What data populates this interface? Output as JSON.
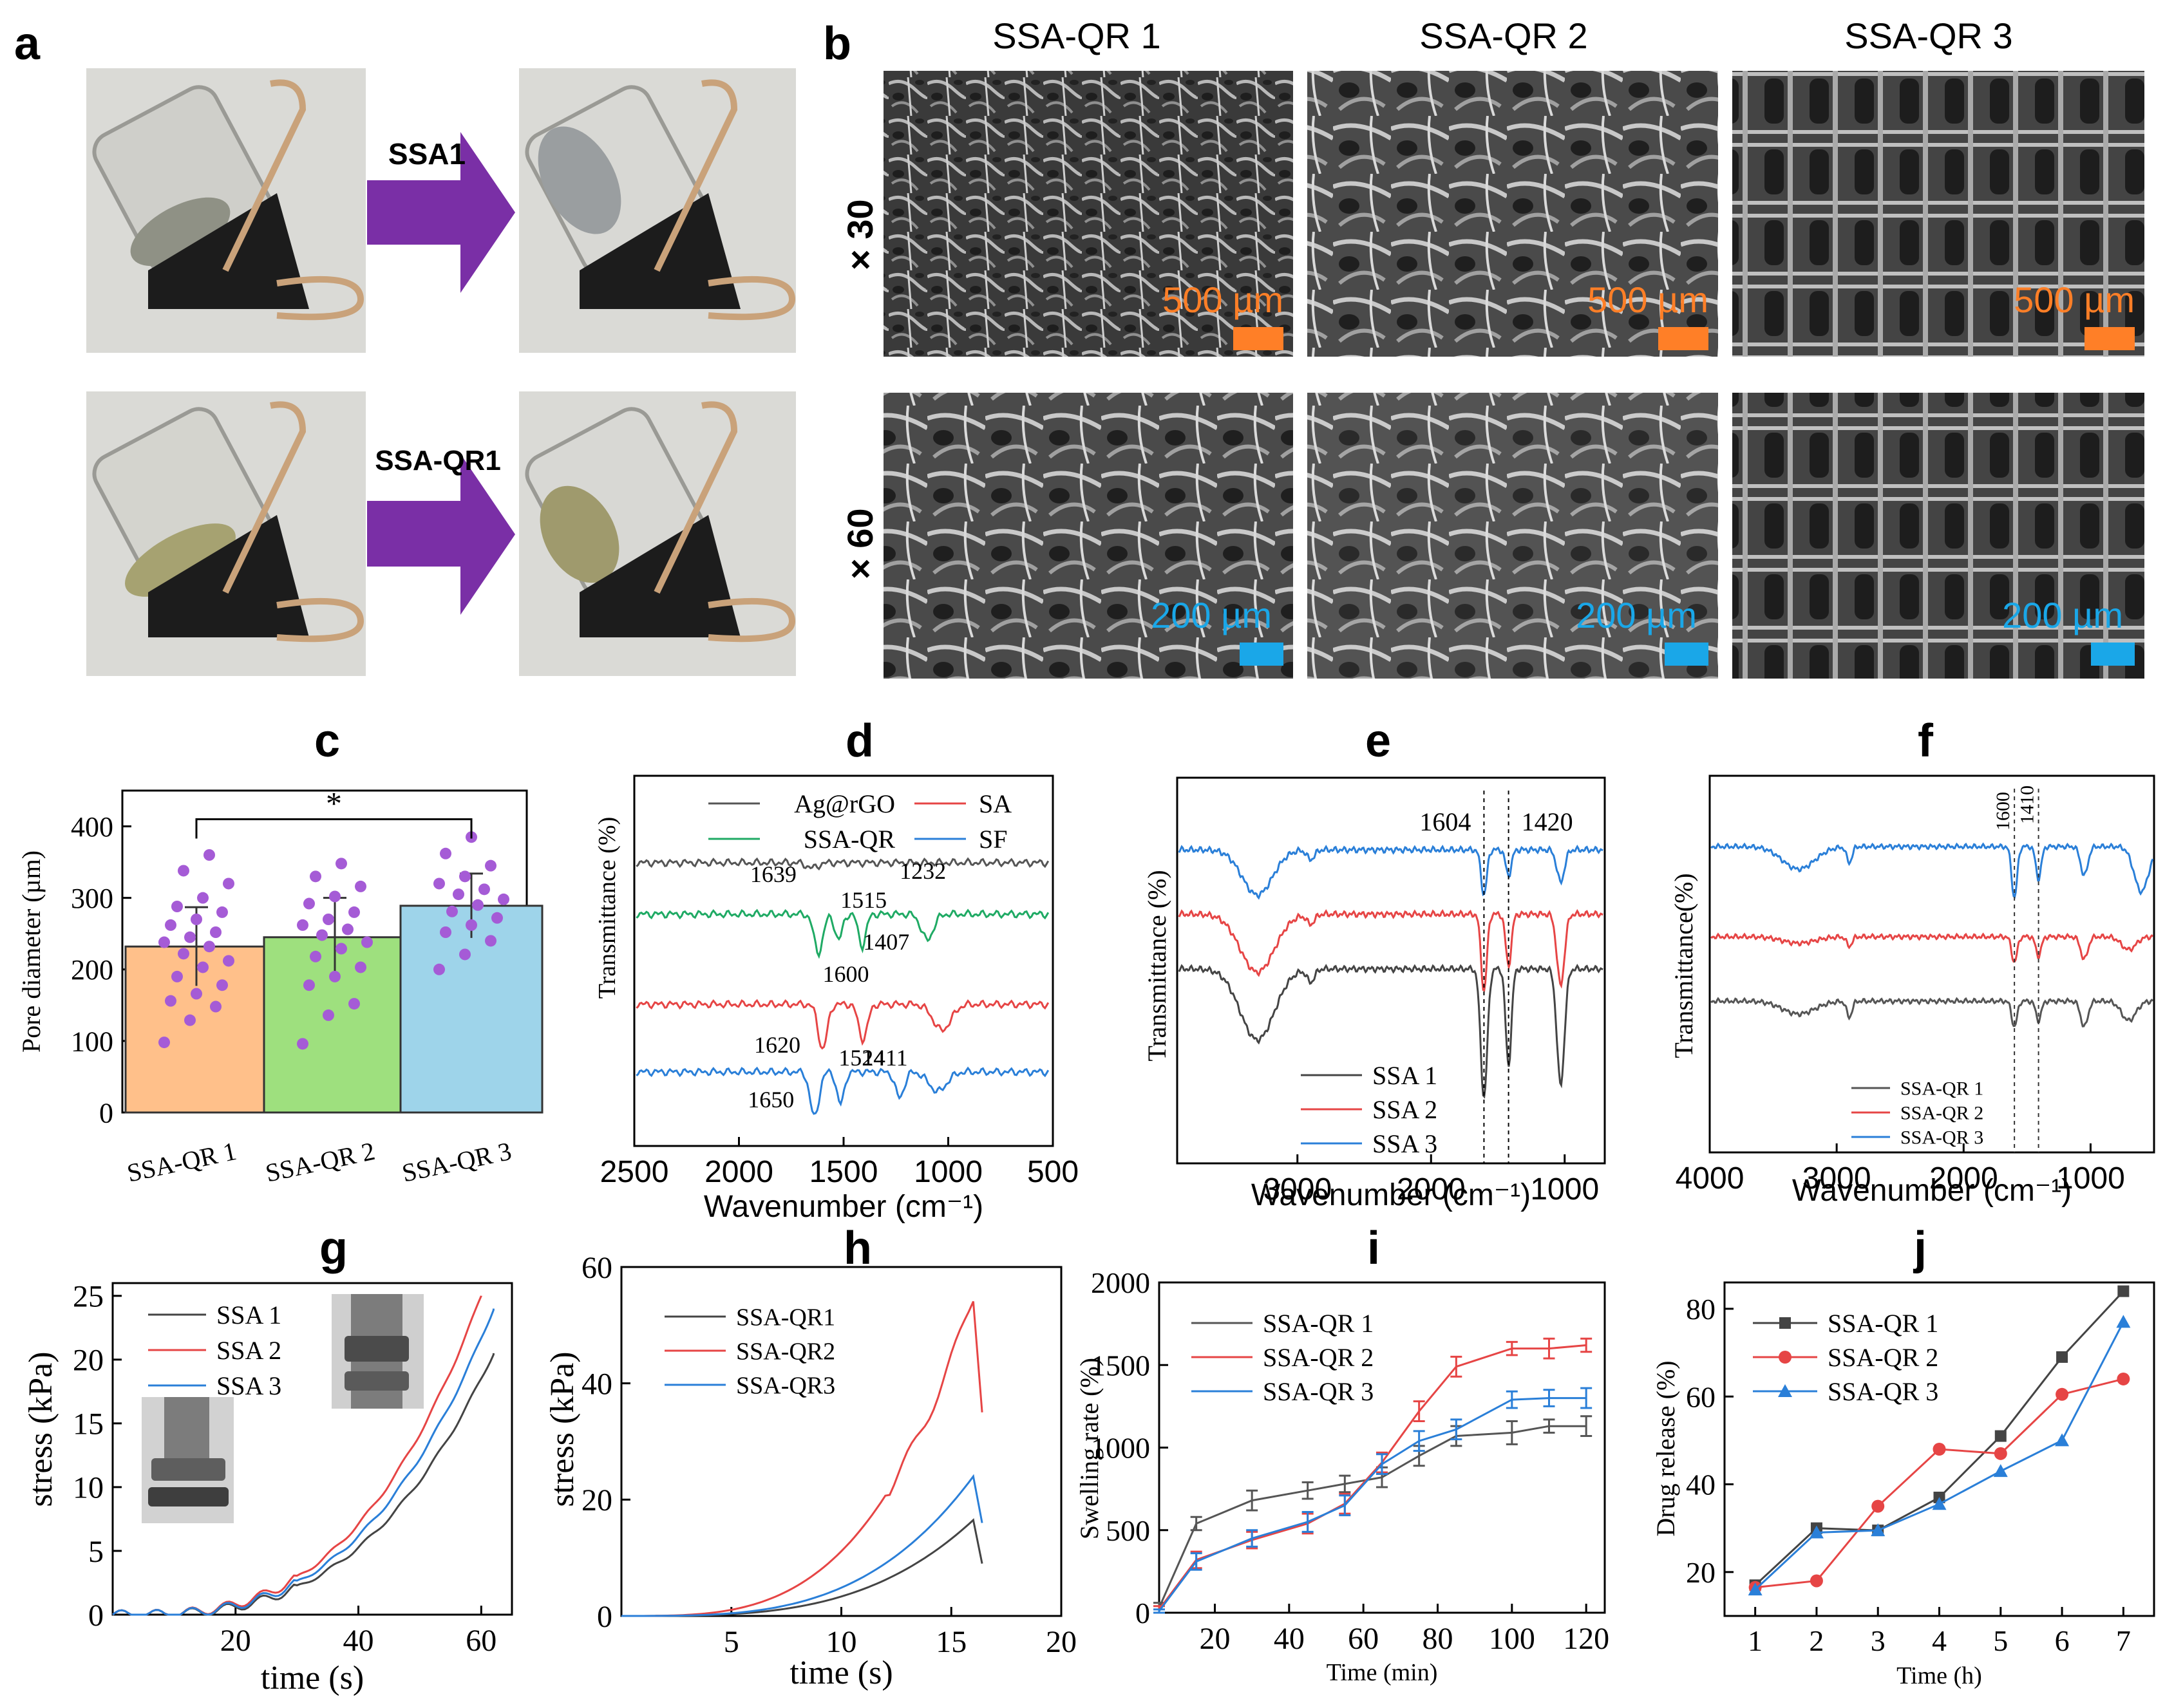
{
  "panels": {
    "a": {
      "label": "a",
      "arrows": [
        "SSA1",
        "SSA-QR1"
      ],
      "colors": {
        "arrow": "#7a2fa6",
        "background": "#d9d9d6",
        "clip": "#1c1c1c",
        "glass": "#c8c8c4"
      }
    },
    "b": {
      "label": "b",
      "columns": [
        "SSA-QR 1",
        "SSA-QR 2",
        "SSA-QR 3"
      ],
      "rows": [
        "× 30",
        "× 60"
      ],
      "scalebars": [
        "500 µm",
        "200 µm"
      ],
      "colors": {
        "scale_top": "#ff7f27",
        "scale_bottom": "#1aa7e8"
      }
    },
    "c": "c",
    "d": "d",
    "e": "e",
    "f": "f",
    "g": "g",
    "h": "h",
    "i": "i",
    "j": "j"
  },
  "chart_data": [
    {
      "id": "c",
      "type": "bar",
      "categories": [
        "SSA-QR 1",
        "SSA-QR 2",
        "SSA-QR 3"
      ],
      "values": [
        232,
        245,
        289
      ],
      "errors": [
        55,
        55,
        45
      ],
      "colors": [
        "#ffc08a",
        "#9ee07e",
        "#9ed4ea"
      ],
      "points": [
        [
          98,
          129,
          148,
          156,
          166,
          178,
          190,
          203,
          212,
          222,
          232,
          238,
          245,
          252,
          262,
          270,
          280,
          288,
          300,
          320,
          338,
          360
        ],
        [
          96,
          136,
          152,
          178,
          190,
          203,
          218,
          229,
          238,
          248,
          256,
          262,
          270,
          280,
          292,
          302,
          316,
          330,
          348
        ],
        [
          200,
          221,
          240,
          252,
          262,
          272,
          281,
          290,
          298,
          305,
          312,
          320,
          330,
          345,
          362,
          385
        ]
      ],
      "ylabel": "Pore diameter (µm)",
      "ylim": [
        0,
        450
      ],
      "yticks": [
        "0",
        "100",
        "200",
        "300",
        "400"
      ],
      "significance": "*"
    },
    {
      "id": "d",
      "type": "line",
      "xlabel": "Wavenumber (cm⁻¹)",
      "ylabel": "Transmittance (%)",
      "xlim": [
        2500,
        500
      ],
      "xticks": [
        "2500",
        "2000",
        "1500",
        "1000",
        "500"
      ],
      "series": [
        {
          "name": "Ag@rGO",
          "color": "#555555",
          "offset": 0
        },
        {
          "name": "SA",
          "color": "#e64545",
          "offset": 2
        },
        {
          "name": "SSA-QR",
          "color": "#1faa64",
          "offset": 1
        },
        {
          "name": "SF",
          "color": "#2a7fd8",
          "offset": 3
        }
      ],
      "annotations": [
        "1639",
        "1515",
        "1232",
        "1600",
        "1407",
        "1620",
        "1524",
        "1411",
        "1650"
      ]
    },
    {
      "id": "e",
      "type": "line",
      "xlabel": "Wavenumber (cm⁻¹)",
      "ylabel": "Transmittance (%)",
      "xlim": [
        3900,
        700
      ],
      "xticks": [
        "3000",
        "2000",
        "1000"
      ],
      "series": [
        {
          "name": "SSA 1",
          "color": "#444444"
        },
        {
          "name": "SSA 2",
          "color": "#e64545"
        },
        {
          "name": "SSA 3",
          "color": "#2a7fd8"
        }
      ],
      "markers": [
        "1604",
        "1420"
      ]
    },
    {
      "id": "f",
      "type": "line",
      "xlabel": "Wavenumber (cm⁻¹)",
      "ylabel": "Transmittance(%)",
      "xlim": [
        4000,
        500
      ],
      "xticks": [
        "4000",
        "3000",
        "2000",
        "1000"
      ],
      "series": [
        {
          "name": "SSA-QR 1",
          "color": "#555555"
        },
        {
          "name": "SSA-QR 2",
          "color": "#e64545"
        },
        {
          "name": "SSA-QR 3",
          "color": "#2a7fd8"
        }
      ],
      "markers": [
        "1600",
        "1410"
      ]
    },
    {
      "id": "g",
      "type": "line",
      "xlabel": "time (s)",
      "ylabel": "stress (kPa)",
      "xlim": [
        0,
        65
      ],
      "ylim": [
        0,
        26
      ],
      "xticks": [
        "20",
        "40",
        "60"
      ],
      "yticks": [
        "0",
        "5",
        "10",
        "15",
        "20",
        "25"
      ],
      "series": [
        {
          "name": "SSA 1",
          "color": "#444444",
          "end": [
            62,
            20.5
          ]
        },
        {
          "name": "SSA 2",
          "color": "#e64545",
          "end": [
            60,
            25
          ]
        },
        {
          "name": "SSA 3",
          "color": "#2a7fd8",
          "end": [
            62,
            24
          ]
        }
      ]
    },
    {
      "id": "h",
      "type": "line",
      "xlabel": "time (s)",
      "ylabel": "stress (kPa)",
      "xlim": [
        0,
        20
      ],
      "ylim": [
        0,
        60
      ],
      "xticks": [
        "5",
        "10",
        "15",
        "20"
      ],
      "yticks": [
        "0",
        "20",
        "40",
        "60"
      ],
      "series": [
        {
          "name": "SSA-QR1",
          "color": "#444444",
          "peak": [
            16,
            16.5
          ],
          "final": 9
        },
        {
          "name": "SSA-QR2",
          "color": "#e64545",
          "peak": [
            16,
            55
          ],
          "final": 35
        },
        {
          "name": "SSA-QR3",
          "color": "#2a7fd8",
          "peak": [
            16,
            24
          ],
          "final": 16
        }
      ]
    },
    {
      "id": "i",
      "type": "line",
      "xlabel": "Time (min)",
      "ylabel": "Swelling rate (%)",
      "xlim": [
        5,
        125
      ],
      "ylim": [
        0,
        2000
      ],
      "xticks": [
        "20",
        "40",
        "60",
        "80",
        "100",
        "120"
      ],
      "yticks": [
        "0",
        "500",
        "1000",
        "1500",
        "2000"
      ],
      "x": [
        5,
        15,
        30,
        45,
        55,
        65,
        75,
        85,
        100,
        110,
        120
      ],
      "series": [
        {
          "name": "SSA-QR 1",
          "color": "#555555",
          "values": [
            30,
            540,
            680,
            740,
            780,
            820,
            950,
            1070,
            1090,
            1130,
            1130
          ],
          "err": [
            30,
            40,
            60,
            50,
            50,
            60,
            60,
            60,
            70,
            40,
            60
          ]
        },
        {
          "name": "SSA-QR 2",
          "color": "#e64545",
          "values": [
            20,
            320,
            440,
            540,
            660,
            910,
            1220,
            1490,
            1600,
            1600,
            1620
          ],
          "err": [
            20,
            50,
            50,
            60,
            60,
            60,
            60,
            60,
            40,
            60,
            40
          ]
        },
        {
          "name": "SSA-QR 3",
          "color": "#2a7fd8",
          "values": [
            10,
            310,
            450,
            550,
            650,
            900,
            1040,
            1110,
            1290,
            1300,
            1300
          ],
          "err": [
            10,
            50,
            50,
            60,
            60,
            60,
            60,
            60,
            50,
            50,
            60
          ]
        }
      ]
    },
    {
      "id": "j",
      "type": "line",
      "xlabel": "Time (h)",
      "ylabel": "Drug release (%)",
      "xlim": [
        0.5,
        7.5
      ],
      "ylim": [
        10,
        86
      ],
      "xticks": [
        "1",
        "2",
        "3",
        "4",
        "5",
        "6",
        "7"
      ],
      "yticks": [
        "20",
        "40",
        "60",
        "80"
      ],
      "x": [
        1,
        2,
        3,
        4,
        5,
        6,
        7
      ],
      "series": [
        {
          "name": "SSA-QR 1",
          "color": "#444444",
          "marker": "square",
          "values": [
            17,
            30,
            29.5,
            37,
            51,
            69,
            84
          ]
        },
        {
          "name": "SSA-QR 2",
          "color": "#e64545",
          "marker": "circle",
          "values": [
            16.5,
            18,
            35,
            48,
            47,
            60.5,
            64
          ]
        },
        {
          "name": "SSA-QR 3",
          "color": "#2a7fd8",
          "marker": "triangle",
          "values": [
            16,
            29,
            29.5,
            35.5,
            43,
            50,
            77
          ]
        }
      ]
    }
  ]
}
